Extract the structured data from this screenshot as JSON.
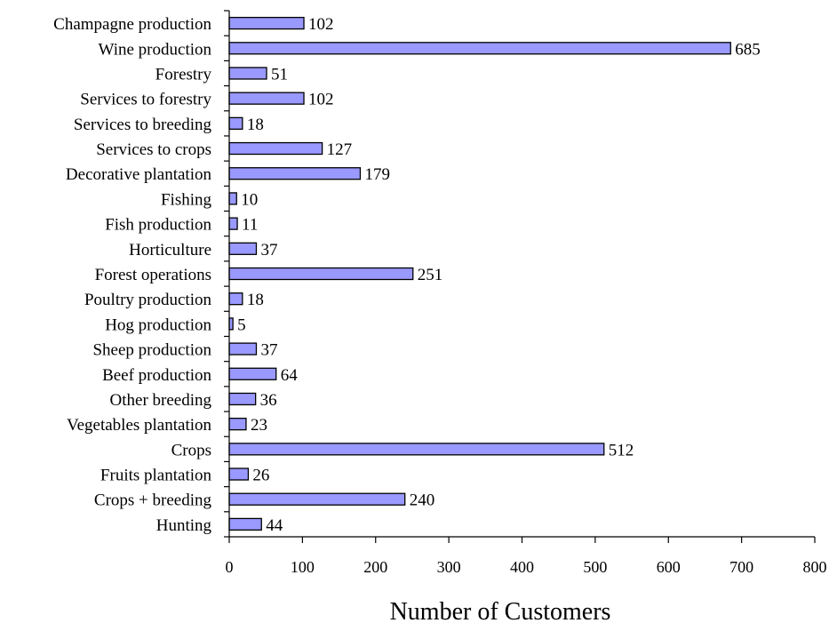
{
  "chart_data": {
    "type": "bar",
    "orientation": "horizontal",
    "categories": [
      "Champagne production",
      "Wine production",
      "Forestry",
      "Services to forestry",
      "Services to breeding",
      "Services to crops",
      "Decorative plantation",
      "Fishing",
      "Fish production",
      "Horticulture",
      "Forest operations",
      "Poultry production",
      "Hog production",
      "Sheep production",
      "Beef production",
      "Other breeding",
      "Vegetables plantation",
      "Crops",
      "Fruits plantation",
      "Crops + breeding",
      "Hunting"
    ],
    "values": [
      102,
      685,
      51,
      102,
      18,
      127,
      179,
      10,
      11,
      37,
      251,
      18,
      5,
      37,
      64,
      36,
      23,
      512,
      26,
      240,
      44
    ],
    "xlabel": "Number of Customers",
    "xlim": [
      0,
      800
    ],
    "xticks": [
      0,
      100,
      200,
      300,
      400,
      500,
      600,
      700,
      800
    ],
    "grid": false,
    "bar_color": "#9999ff",
    "bar_edge_color": "#000000"
  }
}
